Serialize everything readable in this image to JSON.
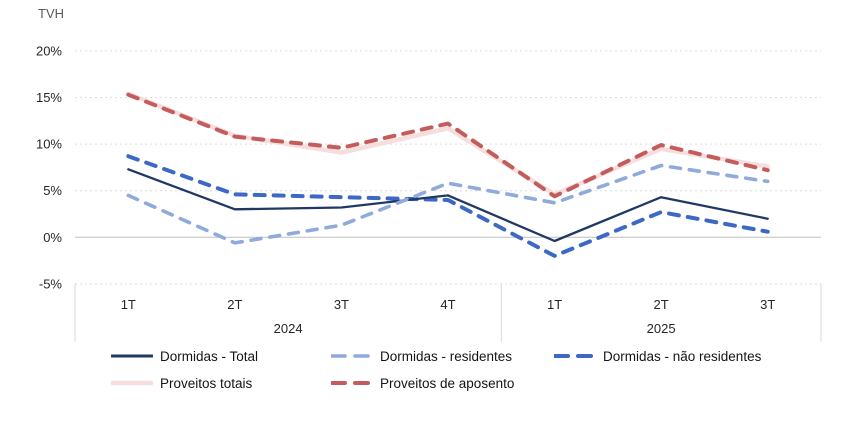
{
  "chart": {
    "unit_label": "TVH"
  },
  "chart_data": {
    "type": "line",
    "title": "",
    "ylabel": "TVH",
    "ylim": [
      -5,
      20
    ],
    "grid": true,
    "legend_position": "bottom",
    "y_ticks": [
      {
        "value": 20,
        "label": "20%"
      },
      {
        "value": 15,
        "label": "15%"
      },
      {
        "value": 10,
        "label": "10%"
      },
      {
        "value": 5,
        "label": "5%"
      },
      {
        "value": 0,
        "label": "0%"
      },
      {
        "value": -5,
        "label": "-5%"
      }
    ],
    "x_groups": [
      {
        "year": "2024",
        "quarters": [
          "1T",
          "2T",
          "3T",
          "4T"
        ]
      },
      {
        "year": "2025",
        "quarters": [
          "1T",
          "2T",
          "3T"
        ]
      }
    ],
    "categories": [
      "1T 2024",
      "2T 2024",
      "3T 2024",
      "4T 2024",
      "1T 2025",
      "2T 2025",
      "3T 2025"
    ],
    "series": [
      {
        "name": "Dormidas - Total",
        "color": "#1F3864",
        "style": "solid",
        "width": 2.3,
        "values": [
          7.3,
          3.0,
          3.2,
          4.5,
          -0.4,
          4.3,
          2.0
        ]
      },
      {
        "name": "Dormidas - residentes",
        "color": "#8FAADC",
        "style": "dashed",
        "width": 3.6,
        "values": [
          4.5,
          -0.6,
          1.3,
          5.8,
          3.7,
          7.7,
          6.0
        ]
      },
      {
        "name": "Dormidas - não residentes",
        "color": "#3E68C6",
        "style": "dashed",
        "width": 4.0,
        "values": [
          8.7,
          4.6,
          4.3,
          4.0,
          -2.0,
          2.7,
          0.6
        ]
      },
      {
        "name": "Proveitos totais",
        "color": "#F5DEDD",
        "style": "solid",
        "width": 4.5,
        "values": [
          15.4,
          10.9,
          9.1,
          11.7,
          4.6,
          9.5,
          7.6
        ]
      },
      {
        "name": "Proveitos de aposento",
        "color": "#C55C5C",
        "style": "dashed",
        "width": 4.0,
        "values": [
          15.3,
          10.8,
          9.6,
          12.2,
          4.4,
          9.9,
          7.2
        ]
      }
    ],
    "draw_order": [
      "Proveitos totais",
      "Proveitos de aposento",
      "Dormidas - não residentes",
      "Dormidas - Total",
      "Dormidas - residentes"
    ],
    "legend_rows": [
      [
        "Dormidas - Total",
        "Dormidas - residentes",
        "Dormidas - não residentes"
      ],
      [
        "Proveitos totais",
        "Proveitos de aposento"
      ]
    ]
  }
}
